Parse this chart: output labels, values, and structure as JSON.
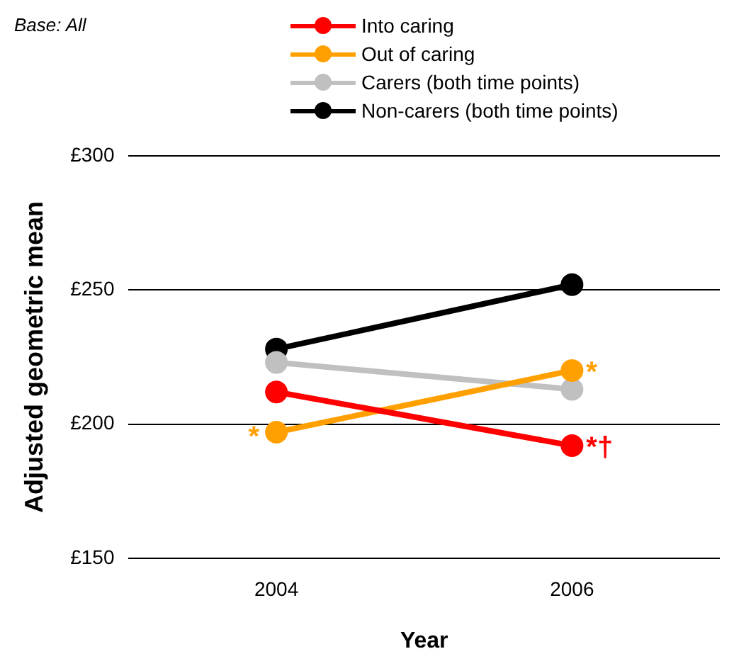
{
  "chart_data": {
    "type": "line",
    "xlabel": "Year",
    "ylabel": "Adjusted geometric mean",
    "categories": [
      "2004",
      "2006"
    ],
    "series": [
      {
        "name": "Into caring",
        "color": "#ff0000",
        "values": [
          212,
          192
        ]
      },
      {
        "name": "Out of caring",
        "color": "#ffa000",
        "values": [
          197,
          220
        ]
      },
      {
        "name": "Carers (both time points)",
        "color": "#c0c0c0",
        "values": [
          223,
          213
        ]
      },
      {
        "name": "Non-carers (both time points)",
        "color": "#000000",
        "values": [
          228,
          252
        ]
      }
    ],
    "ylim": [
      150,
      300
    ],
    "yticks": [
      {
        "value": 150,
        "label": "£150"
      },
      {
        "value": 200,
        "label": "£200"
      },
      {
        "value": 250,
        "label": "£250"
      },
      {
        "value": 300,
        "label": "£300"
      }
    ],
    "grid": "y",
    "legend": "top",
    "marker": "circle",
    "line_style": "solid",
    "annotations": [
      "Base: All",
      {
        "text": "*",
        "x": "2004",
        "y": 197
      },
      {
        "text": "*",
        "x": "2006",
        "y": 220
      },
      {
        "text": "*†",
        "x": "2006",
        "y": 192
      }
    ]
  }
}
